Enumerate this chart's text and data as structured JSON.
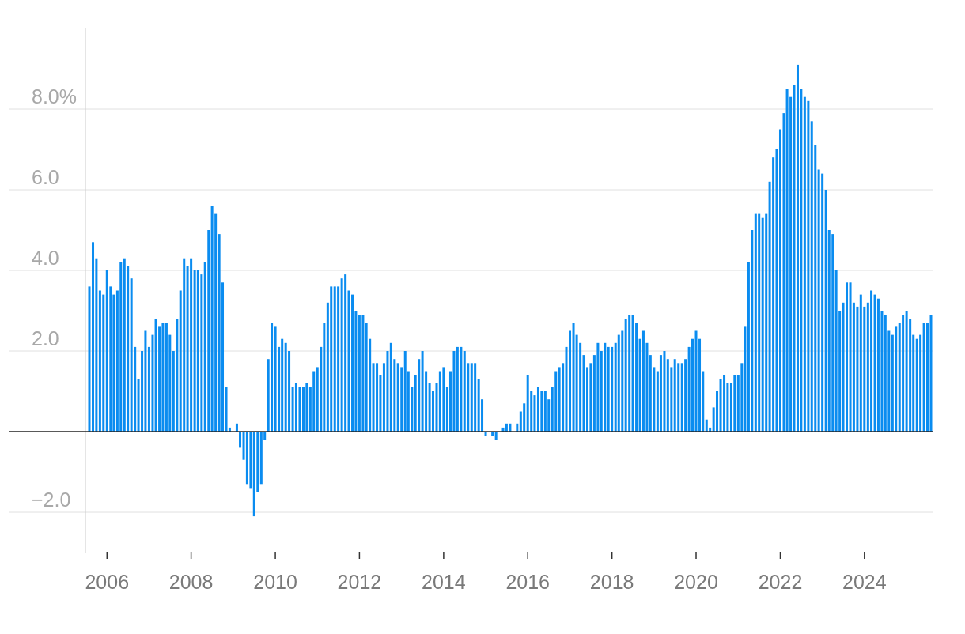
{
  "chart_data": {
    "type": "bar",
    "x": [
      "2005-08",
      "2005-09",
      "2005-10",
      "2005-11",
      "2005-12",
      "2006-01",
      "2006-02",
      "2006-03",
      "2006-04",
      "2006-05",
      "2006-06",
      "2006-07",
      "2006-08",
      "2006-09",
      "2006-10",
      "2006-11",
      "2006-12",
      "2007-01",
      "2007-02",
      "2007-03",
      "2007-04",
      "2007-05",
      "2007-06",
      "2007-07",
      "2007-08",
      "2007-09",
      "2007-10",
      "2007-11",
      "2007-12",
      "2008-01",
      "2008-02",
      "2008-03",
      "2008-04",
      "2008-05",
      "2008-06",
      "2008-07",
      "2008-08",
      "2008-09",
      "2008-10",
      "2008-11",
      "2008-12",
      "2009-01",
      "2009-02",
      "2009-03",
      "2009-04",
      "2009-05",
      "2009-06",
      "2009-07",
      "2009-08",
      "2009-09",
      "2009-10",
      "2009-11",
      "2009-12",
      "2010-01",
      "2010-02",
      "2010-03",
      "2010-04",
      "2010-05",
      "2010-06",
      "2010-07",
      "2010-08",
      "2010-09",
      "2010-10",
      "2010-11",
      "2010-12",
      "2011-01",
      "2011-02",
      "2011-03",
      "2011-04",
      "2011-05",
      "2011-06",
      "2011-07",
      "2011-08",
      "2011-09",
      "2011-10",
      "2011-11",
      "2011-12",
      "2012-01",
      "2012-02",
      "2012-03",
      "2012-04",
      "2012-05",
      "2012-06",
      "2012-07",
      "2012-08",
      "2012-09",
      "2012-10",
      "2012-11",
      "2012-12",
      "2013-01",
      "2013-02",
      "2013-03",
      "2013-04",
      "2013-05",
      "2013-06",
      "2013-07",
      "2013-08",
      "2013-09",
      "2013-10",
      "2013-11",
      "2013-12",
      "2014-01",
      "2014-02",
      "2014-03",
      "2014-04",
      "2014-05",
      "2014-06",
      "2014-07",
      "2014-08",
      "2014-09",
      "2014-10",
      "2014-11",
      "2014-12",
      "2015-01",
      "2015-02",
      "2015-03",
      "2015-04",
      "2015-05",
      "2015-06",
      "2015-07",
      "2015-08",
      "2015-09",
      "2015-10",
      "2015-11",
      "2015-12",
      "2016-01",
      "2016-02",
      "2016-03",
      "2016-04",
      "2016-05",
      "2016-06",
      "2016-07",
      "2016-08",
      "2016-09",
      "2016-10",
      "2016-11",
      "2016-12",
      "2017-01",
      "2017-02",
      "2017-03",
      "2017-04",
      "2017-05",
      "2017-06",
      "2017-07",
      "2017-08",
      "2017-09",
      "2017-10",
      "2017-11",
      "2017-12",
      "2018-01",
      "2018-02",
      "2018-03",
      "2018-04",
      "2018-05",
      "2018-06",
      "2018-07",
      "2018-08",
      "2018-09",
      "2018-10",
      "2018-11",
      "2018-12",
      "2019-01",
      "2019-02",
      "2019-03",
      "2019-04",
      "2019-05",
      "2019-06",
      "2019-07",
      "2019-08",
      "2019-09",
      "2019-10",
      "2019-11",
      "2019-12",
      "2020-01",
      "2020-02",
      "2020-03",
      "2020-04",
      "2020-05",
      "2020-06",
      "2020-07",
      "2020-08",
      "2020-09",
      "2020-10",
      "2020-11",
      "2020-12",
      "2021-01",
      "2021-02",
      "2021-03",
      "2021-04",
      "2021-05",
      "2021-06",
      "2021-07",
      "2021-08",
      "2021-09",
      "2021-10",
      "2021-11",
      "2021-12",
      "2022-01",
      "2022-02",
      "2022-03",
      "2022-04",
      "2022-05",
      "2022-06",
      "2022-07",
      "2022-08",
      "2022-09",
      "2022-10",
      "2022-11",
      "2022-12",
      "2023-01",
      "2023-02",
      "2023-03",
      "2023-04",
      "2023-05",
      "2023-06",
      "2023-07",
      "2023-08",
      "2023-09",
      "2023-10",
      "2023-11",
      "2023-12",
      "2024-01",
      "2024-02",
      "2024-03",
      "2024-04",
      "2024-05",
      "2024-06",
      "2024-07",
      "2024-08",
      "2024-09",
      "2024-10",
      "2024-11",
      "2024-12",
      "2025-01",
      "2025-02",
      "2025-03",
      "2025-04",
      "2025-05",
      "2025-06",
      "2025-07",
      "2025-08"
    ],
    "values": [
      3.6,
      4.7,
      4.3,
      3.5,
      3.4,
      4.0,
      3.6,
      3.4,
      3.5,
      4.2,
      4.3,
      4.1,
      3.8,
      2.1,
      1.3,
      2.0,
      2.5,
      2.1,
      2.4,
      2.8,
      2.6,
      2.7,
      2.7,
      2.4,
      2.0,
      2.8,
      3.5,
      4.3,
      4.1,
      4.3,
      4.0,
      4.0,
      3.9,
      4.2,
      5.0,
      5.6,
      5.4,
      4.9,
      3.7,
      1.1,
      0.1,
      0.0,
      0.2,
      -0.4,
      -0.7,
      -1.3,
      -1.4,
      -2.1,
      -1.5,
      -1.3,
      -0.2,
      1.8,
      2.7,
      2.6,
      2.1,
      2.3,
      2.2,
      2.0,
      1.1,
      1.2,
      1.1,
      1.1,
      1.2,
      1.1,
      1.5,
      1.6,
      2.1,
      2.7,
      3.2,
      3.6,
      3.6,
      3.6,
      3.8,
      3.9,
      3.5,
      3.4,
      3.0,
      2.9,
      2.9,
      2.7,
      2.3,
      1.7,
      1.7,
      1.4,
      1.7,
      2.0,
      2.2,
      1.8,
      1.7,
      1.6,
      2.0,
      1.5,
      1.1,
      1.4,
      1.8,
      2.0,
      1.5,
      1.2,
      1.0,
      1.2,
      1.5,
      1.6,
      1.1,
      1.5,
      2.0,
      2.1,
      2.1,
      2.0,
      1.7,
      1.7,
      1.7,
      1.3,
      0.8,
      -0.1,
      0.0,
      -0.1,
      -0.2,
      0.0,
      0.1,
      0.2,
      0.2,
      0.0,
      0.2,
      0.5,
      0.7,
      1.4,
      1.0,
      0.9,
      1.1,
      1.0,
      1.0,
      0.8,
      1.1,
      1.5,
      1.6,
      1.7,
      2.1,
      2.5,
      2.7,
      2.4,
      2.2,
      1.9,
      1.6,
      1.7,
      1.9,
      2.2,
      2.0,
      2.2,
      2.1,
      2.1,
      2.2,
      2.4,
      2.5,
      2.8,
      2.9,
      2.9,
      2.7,
      2.3,
      2.5,
      2.2,
      1.9,
      1.6,
      1.5,
      1.9,
      2.0,
      1.8,
      1.6,
      1.8,
      1.7,
      1.7,
      1.8,
      2.1,
      2.3,
      2.5,
      2.3,
      1.5,
      0.3,
      0.1,
      0.6,
      1.0,
      1.3,
      1.4,
      1.2,
      1.2,
      1.4,
      1.4,
      1.7,
      2.6,
      4.2,
      5.0,
      5.4,
      5.4,
      5.3,
      5.4,
      6.2,
      6.8,
      7.0,
      7.5,
      7.9,
      8.5,
      8.3,
      8.6,
      9.1,
      8.5,
      8.3,
      8.2,
      7.7,
      7.1,
      6.5,
      6.4,
      6.0,
      5.0,
      4.9,
      4.0,
      3.0,
      3.2,
      3.7,
      3.7,
      3.2,
      3.1,
      3.4,
      3.1,
      3.2,
      3.5,
      3.4,
      3.3,
      3.0,
      2.9,
      2.5,
      2.4,
      2.6,
      2.7,
      2.9,
      3.0,
      2.8,
      2.4,
      2.3,
      2.4,
      2.7,
      2.7,
      2.9
    ],
    "color": "#0a8cf0",
    "xlim": [
      "2005-08",
      "2025-08"
    ],
    "xticks": [
      {
        "value": "2006",
        "label": "2006"
      },
      {
        "value": "2008",
        "label": "2008"
      },
      {
        "value": "2010",
        "label": "2010"
      },
      {
        "value": "2012",
        "label": "2012"
      },
      {
        "value": "2014",
        "label": "2014"
      },
      {
        "value": "2016",
        "label": "2016"
      },
      {
        "value": "2018",
        "label": "2018"
      },
      {
        "value": "2020",
        "label": "2020"
      },
      {
        "value": "2022",
        "label": "2022"
      },
      {
        "value": "2024",
        "label": "2024"
      }
    ],
    "ylim": [
      -3,
      10
    ],
    "yticks": [
      {
        "value": -2,
        "label": "−2.0"
      },
      {
        "value": 0,
        "label": null
      },
      {
        "value": 2,
        "label": "2.0"
      },
      {
        "value": 4,
        "label": "4.0"
      },
      {
        "value": 6,
        "label": "6.0"
      },
      {
        "value": 8,
        "label": "8.0%"
      }
    ],
    "grid": "y"
  }
}
